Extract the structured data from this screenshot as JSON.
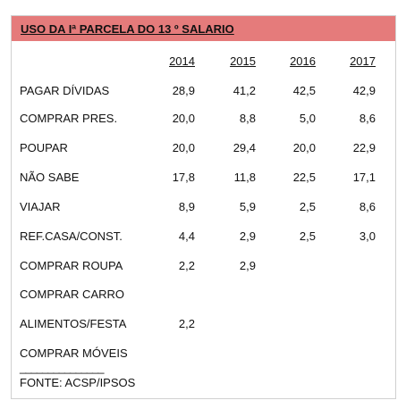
{
  "title": "USO DA Iª PARCELA DO 13 º SALARIO",
  "years": [
    "2014",
    "2015",
    "2016",
    "2017"
  ],
  "rows": [
    {
      "label": "PAGAR DÍVIDAS",
      "values": [
        "28,9",
        "41,2",
        "42,5",
        "42,9"
      ]
    },
    {
      "label": "COMPRAR PRES.",
      "values": [
        "20,0",
        "8,8",
        "5,0",
        "8,6"
      ]
    },
    {
      "label": "POUPAR",
      "values": [
        "20,0",
        "29,4",
        "20,0",
        "22,9"
      ]
    },
    {
      "label": "NÃO SABE",
      "values": [
        "17,8",
        "11,8",
        "22,5",
        "17,1"
      ]
    },
    {
      "label": "VIAJAR",
      "values": [
        "8,9",
        "5,9",
        "2,5",
        "8,6"
      ]
    },
    {
      "label": "REF.CASA/CONST.",
      "values": [
        "4,4",
        "2,9",
        "2,5",
        "3,0"
      ]
    },
    {
      "label": "COMPRAR ROUPA",
      "values": [
        "2,2",
        "2,9",
        "",
        ""
      ]
    },
    {
      "label": "COMPRAR CARRO",
      "values": [
        "",
        "",
        "",
        ""
      ]
    },
    {
      "label": "ALIMENTOS/FESTA",
      "values": [
        "2,2",
        "",
        "",
        ""
      ]
    },
    {
      "label": "COMPRAR MÓVEIS",
      "values": [
        "",
        "",
        "",
        ""
      ]
    }
  ],
  "separator": "_______________",
  "source": "FONTE: ACSP/IPSOS",
  "colors": {
    "title_background": "#e57b7b",
    "border": "#d0d0d0"
  }
}
